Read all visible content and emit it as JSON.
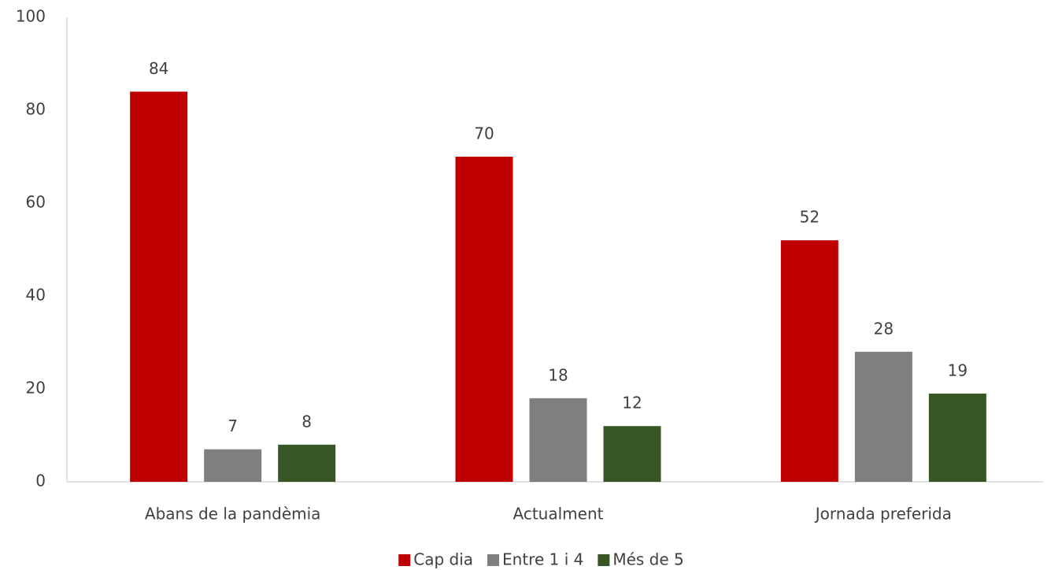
{
  "chart_data": {
    "type": "bar",
    "categories": [
      "Abans de la pandèmia",
      "Actualment",
      "Jornada preferida"
    ],
    "series": [
      {
        "name": "Cap dia",
        "color": "#c00000",
        "values": [
          84,
          70,
          52
        ]
      },
      {
        "name": "Entre 1 i 4",
        "color": "#7f7f7f",
        "values": [
          7,
          18,
          28
        ]
      },
      {
        "name": "Més de 5",
        "color": "#375623",
        "values": [
          8,
          12,
          19
        ]
      }
    ],
    "ylim": [
      0,
      100
    ],
    "yticks": [
      0,
      20,
      40,
      60,
      80,
      100
    ],
    "grid": false,
    "legend": "bottom"
  }
}
